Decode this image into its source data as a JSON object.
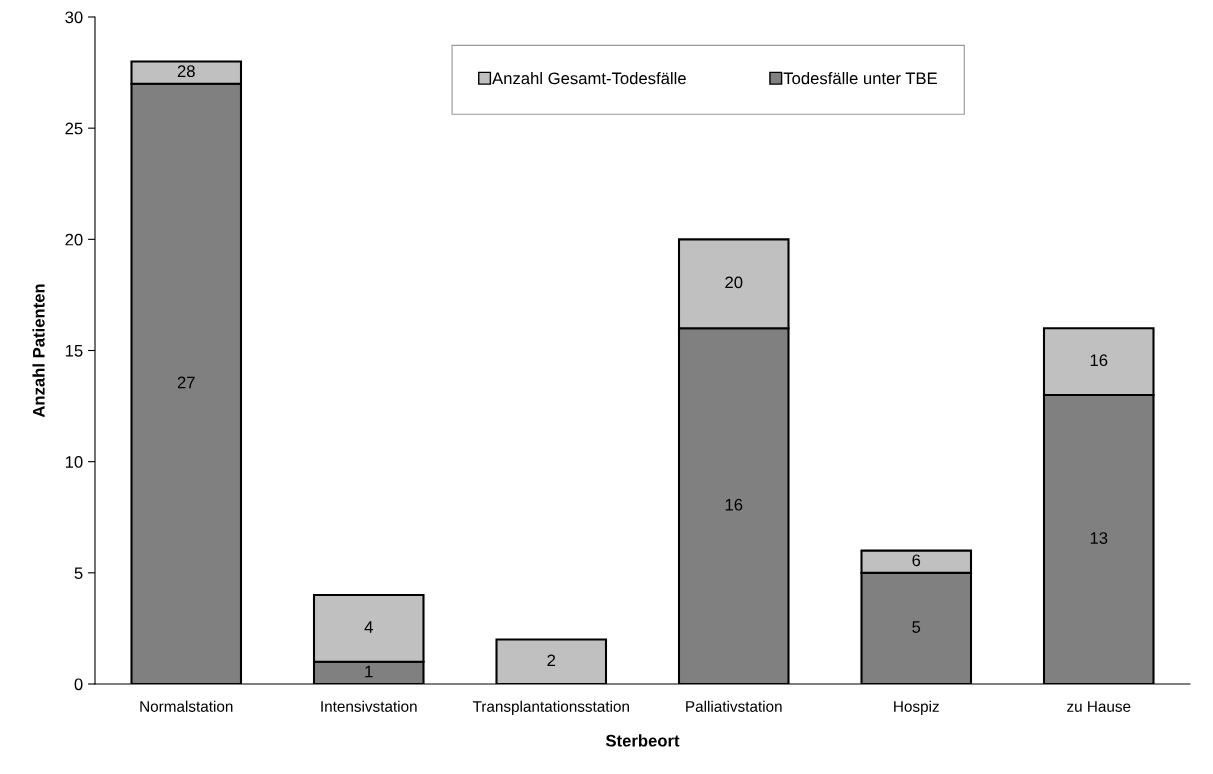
{
  "chart_data": {
    "type": "bar",
    "stacked": true,
    "xlabel": "Sterbeort",
    "ylabel": "Anzahl Patienten",
    "categories": [
      "Normalstation",
      "Intensivstation",
      "Transplantationsstation",
      "Palliativstation",
      "Hospiz",
      "zu Hause"
    ],
    "series": [
      {
        "name": "Todesfälle unter TBE",
        "color": "#808080",
        "values": [
          27,
          1,
          0,
          16,
          5,
          13
        ],
        "value_labels": [
          "27",
          "1",
          null,
          "16",
          "5",
          "13"
        ]
      },
      {
        "name": "Anzahl Gesamt-Todesfälle",
        "color": "#c0c0c0",
        "values": [
          1,
          3,
          2,
          4,
          1,
          3
        ]
      }
    ],
    "totals": [
      "28",
      "4",
      "2",
      "20",
      "6",
      "16"
    ],
    "ylim": [
      0,
      30
    ],
    "yticks": [
      0,
      5,
      10,
      15,
      20,
      25,
      30
    ],
    "grid": false,
    "legend": "top"
  }
}
